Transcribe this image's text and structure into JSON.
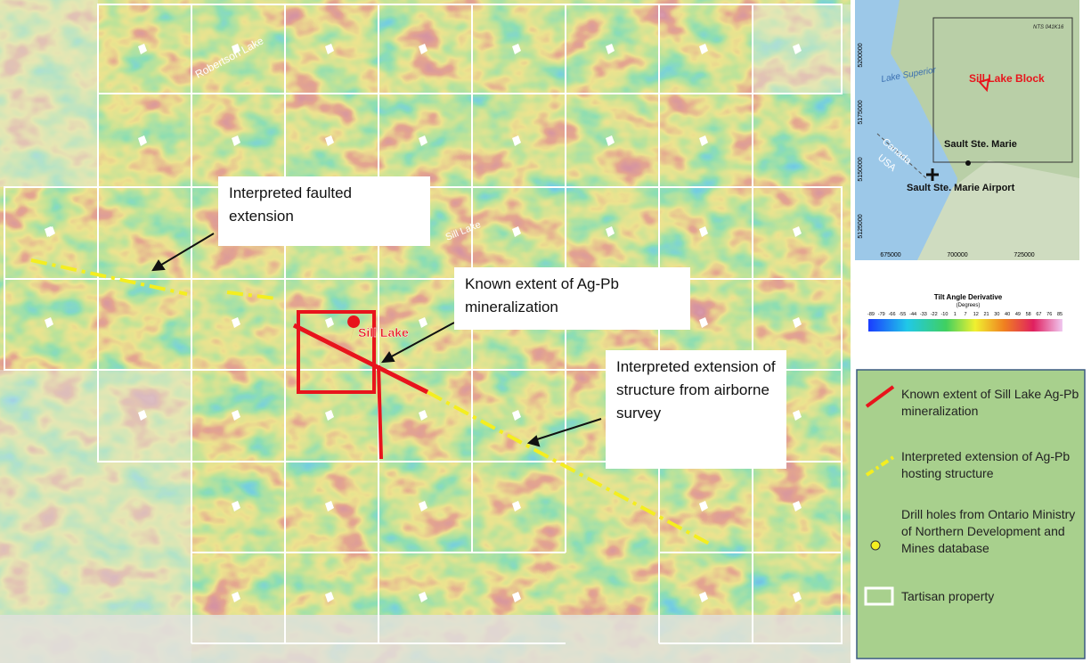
{
  "map": {
    "labels": {
      "robertson_lake": "Robertson Lake",
      "sill_lake_water": "Sill Lake",
      "sill_lake_marker": "Sill Lake"
    },
    "callouts": [
      "Interpreted faulted extension",
      "Known extent  of Ag-Pb mineralization",
      "Interpreted extension of structure from airborne survey"
    ]
  },
  "inset": {
    "sheet": "NTS 041K16",
    "lake": "Lake Superior",
    "block": "Sill Lake Block",
    "city": "Sault Ste. Marie",
    "airport": "Sault Ste. Marie Airport",
    "canada": "Canada",
    "usa": "USA",
    "northings": [
      "5200000",
      "5175000",
      "5150000",
      "5125000"
    ],
    "eastings": [
      "675000",
      "700000",
      "725000"
    ]
  },
  "colorbar": {
    "title": "Tilt Angle Derivative",
    "unit": "(Degrees)",
    "ticks": [
      "-89",
      "-79",
      "-66",
      "-55",
      "-44",
      "-33",
      "-22",
      "-10",
      "1",
      "7",
      "12",
      "21",
      "30",
      "40",
      "49",
      "58",
      "67",
      "76",
      "85"
    ]
  },
  "legend": [
    "Known extent of Sill Lake Ag-Pb mineralization",
    "Interpreted extension of Ag-Pb hosting structure",
    "Drill holes from Ontario Ministry of Northern Development and Mines database",
    "Tartisan property"
  ]
}
